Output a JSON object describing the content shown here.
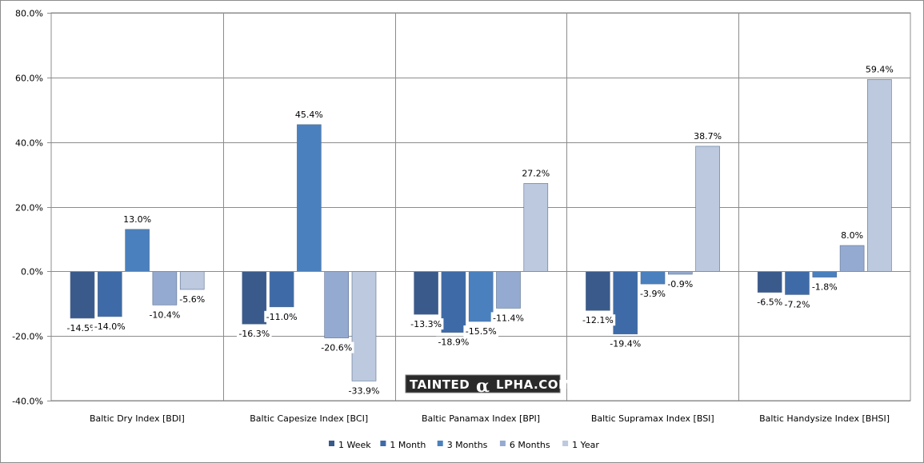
{
  "chart_data": {
    "type": "bar",
    "title": "",
    "xlabel": "",
    "ylabel": "",
    "ylim": [
      -40,
      80
    ],
    "yticks": [
      -40,
      -20,
      0,
      20,
      40,
      60,
      80
    ],
    "ytick_labels": [
      "-40.0%",
      "-20.0%",
      "0.0%",
      "20.0%",
      "40.0%",
      "60.0%",
      "80.0%"
    ],
    "grid": true,
    "legend_position": "bottom",
    "categories": [
      "Baltic Dry Index [BDI]",
      "Baltic Capesize Index [BCI]",
      "Baltic Panamax Index [BPI]",
      "Baltic Supramax Index [BSI]",
      "Baltic Handysize Index [BHSI]"
    ],
    "series": [
      {
        "name": "1 Week",
        "color": "#3A5A8C",
        "values": [
          -14.5,
          -16.3,
          -13.3,
          -12.1,
          -6.5
        ],
        "labels": [
          "-14.5%",
          "-16.3%",
          "-13.3%",
          "-12.1%",
          "-6.5%"
        ]
      },
      {
        "name": "1 Month",
        "color": "#3E6BA8",
        "values": [
          -14.0,
          -11.0,
          -18.9,
          -19.4,
          -7.2
        ],
        "labels": [
          "-14.0%",
          "-11.0%",
          "-18.9%",
          "-19.4%",
          "-7.2%"
        ]
      },
      {
        "name": "3 Months",
        "color": "#4A80BE",
        "values": [
          13.0,
          45.4,
          -15.5,
          -3.9,
          -1.8
        ],
        "labels": [
          "13.0%",
          "45.4%",
          "-15.5%",
          "-3.9%",
          "-1.8%"
        ]
      },
      {
        "name": "6 Months",
        "color": "#95AAD0",
        "values": [
          -10.4,
          -20.6,
          -11.4,
          -0.9,
          8.0
        ],
        "labels": [
          "-10.4%",
          "-20.6%",
          "-11.4%",
          "-0.9%",
          "8.0%"
        ]
      },
      {
        "name": "1 Year",
        "color": "#BCC9DE",
        "values": [
          -5.6,
          -33.9,
          27.2,
          38.7,
          59.4
        ],
        "labels": [
          "-5.6%",
          "-33.9%",
          "27.2%",
          "38.7%",
          "59.4%"
        ]
      }
    ],
    "watermark": {
      "prefix": "TAINTED",
      "alpha": "α",
      "suffix": "LPHA.COM"
    }
  }
}
